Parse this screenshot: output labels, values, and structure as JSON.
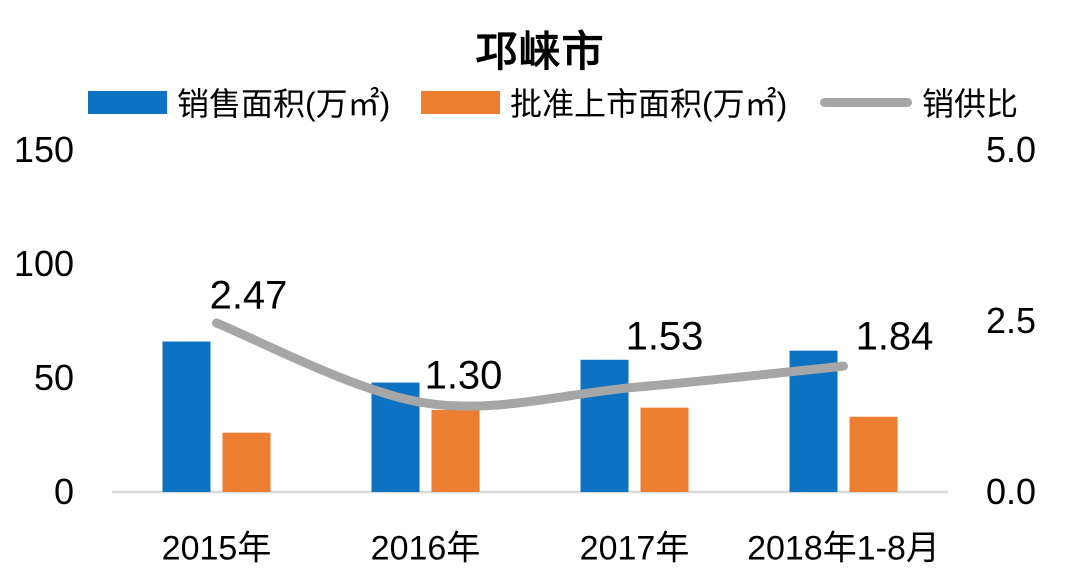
{
  "title": "邛崃市",
  "legend": [
    {
      "label": "销售面积(万㎡)",
      "color": "#0E72C2",
      "type": "bar"
    },
    {
      "label": "批准上市面积(万㎡)",
      "color": "#ED7D31",
      "type": "bar"
    },
    {
      "label": "销供比",
      "color": "#A6A6A6",
      "type": "line"
    }
  ],
  "left_axis": {
    "ticks": [
      "150",
      "100",
      "50",
      "0"
    ],
    "min": 0,
    "max": 150
  },
  "right_axis": {
    "ticks": [
      "5.0",
      "2.5",
      "0.0"
    ],
    "min": 0,
    "max": 5
  },
  "axis_line_color": "#D9D9D9",
  "chart_data": {
    "type": "bar",
    "title": "邛崃市",
    "categories": [
      "2015年",
      "2016年",
      "2017年",
      "2018年1-8月"
    ],
    "series": [
      {
        "name": "销售面积(万㎡)",
        "type": "bar",
        "axis": "left",
        "color": "#0E72C2",
        "values": [
          66,
          48,
          58,
          62
        ]
      },
      {
        "name": "批准上市面积(万㎡)",
        "type": "bar",
        "axis": "left",
        "color": "#ED7D31",
        "values": [
          26,
          36,
          37,
          33
        ]
      },
      {
        "name": "销供比",
        "type": "line",
        "axis": "right",
        "color": "#A6A6A6",
        "values": [
          2.47,
          1.3,
          1.53,
          1.84
        ],
        "labels": [
          "2.47",
          "1.30",
          "1.53",
          "1.84"
        ]
      }
    ],
    "left_ylim": [
      0,
      150
    ],
    "right_ylim": [
      0,
      5
    ],
    "grid": false,
    "legend_position": "top"
  }
}
